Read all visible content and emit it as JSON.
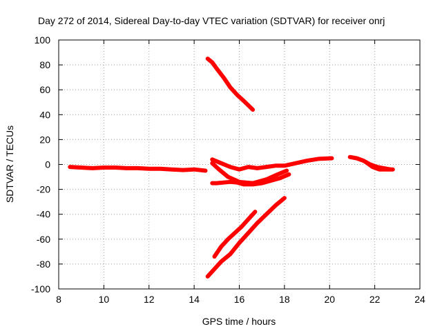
{
  "chart_data": {
    "type": "line",
    "title": "Day 272 of 2014, Sidereal Day-to-day VTEC variation (SDTVAR) for receiver onrj",
    "xlabel": "GPS time / hours",
    "ylabel": "SDTVAR / TECUs",
    "xlim": [
      8,
      24
    ],
    "ylim": [
      -100,
      100
    ],
    "xticks": [
      "8",
      "10",
      "12",
      "14",
      "16",
      "18",
      "20",
      "22",
      "24"
    ],
    "yticks": [
      "100",
      "80",
      "60",
      "40",
      "20",
      "0",
      "-20",
      "-40",
      "-60",
      "-80",
      "-100"
    ],
    "grid": true,
    "color": "#ff0000",
    "series": [
      {
        "x": [
          8.5,
          9,
          9.5,
          10,
          10.5,
          11,
          11.5,
          12,
          12.5,
          13,
          13.5,
          14,
          14.5
        ],
        "y": [
          -2,
          -2.5,
          -3,
          -2.5,
          -2.5,
          -3,
          -3,
          -3.5,
          -3.5,
          -4,
          -4.5,
          -4,
          -5
        ]
      },
      {
        "x": [
          14.6,
          14.8,
          15,
          15.3,
          15.6,
          15.9,
          16.2,
          16.6
        ],
        "y": [
          85,
          82,
          77,
          70,
          62,
          56,
          51,
          44
        ]
      },
      {
        "x": [
          14.8,
          15,
          15.3,
          15.6,
          15.9,
          16.2,
          16.6,
          17,
          17.4,
          17.8,
          18.2
        ],
        "y": [
          -15,
          -15,
          -14.5,
          -14,
          -14.5,
          -16,
          -16,
          -15,
          -13,
          -11,
          -8
        ]
      },
      {
        "x": [
          14.8,
          15.2,
          15.6,
          16,
          16.4,
          16.8,
          17.2,
          17.6,
          18,
          18.5,
          19,
          19.5,
          20.1
        ],
        "y": [
          4,
          1,
          -2,
          -4,
          -2,
          -3,
          -2,
          -1,
          -1,
          1,
          3,
          4.5,
          5
        ]
      },
      {
        "x": [
          14.8,
          15.1,
          15.5,
          16,
          16.6,
          17.2,
          17.7,
          18.1
        ],
        "y": [
          1,
          -4,
          -10,
          -14,
          -15,
          -12,
          -8,
          -5
        ]
      },
      {
        "x": [
          20.9,
          21.2,
          21.5,
          21.8,
          22.1,
          22.4,
          22.7
        ],
        "y": [
          6,
          5,
          3,
          0,
          -2,
          -3,
          -4
        ]
      },
      {
        "x": [
          21.6,
          21.9,
          22.2,
          22.5,
          22.8
        ],
        "y": [
          2,
          -2,
          -4,
          -4,
          -4
        ]
      },
      {
        "x": [
          14.6,
          14.9,
          15.2,
          15.6,
          16,
          16.4,
          16.8,
          17.2,
          17.6,
          18.0
        ],
        "y": [
          -90,
          -84,
          -78,
          -72,
          -63,
          -55,
          -47,
          -40,
          -33,
          -27
        ]
      },
      {
        "x": [
          14.9,
          15.2,
          15.5,
          15.8,
          16.1,
          16.4,
          16.7
        ],
        "y": [
          -74,
          -66,
          -60,
          -55,
          -50,
          -44,
          -38
        ]
      }
    ]
  }
}
